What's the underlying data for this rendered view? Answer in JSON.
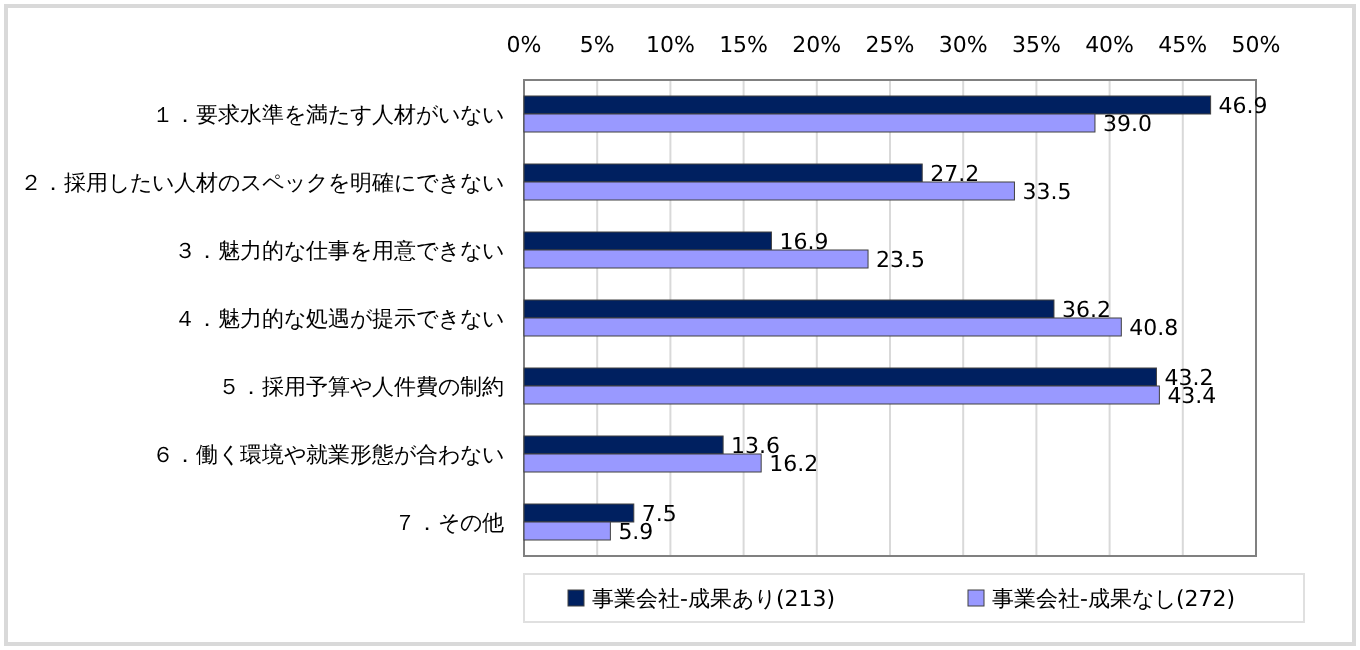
{
  "chart_data": {
    "type": "bar",
    "orientation": "horizontal",
    "categories": [
      "１．要求水準を満たす人材がいない",
      "２．採用したい人材のスペックを明確にできない",
      "３．魅力的な仕事を用意できない",
      "４．魅力的な処遇が提示できない",
      "５．採用予算や人件費の制約",
      "６．働く環境や就業形態が合わない",
      "７．その他"
    ],
    "series": [
      {
        "name": "事業会社-成果あり(213)",
        "color": "#002060",
        "values": [
          46.9,
          27.2,
          16.9,
          36.2,
          43.2,
          13.6,
          7.5
        ],
        "value_labels": [
          "46.9",
          "27.2",
          "16.9",
          "36.2",
          "43.2",
          "13.6",
          "7.5"
        ]
      },
      {
        "name": "事業会社-成果なし(272)",
        "color": "#9999ff",
        "values": [
          39.0,
          33.5,
          23.5,
          40.8,
          43.4,
          16.2,
          5.9
        ],
        "value_labels": [
          "39.0",
          "33.5",
          "23.5",
          "40.8",
          "43.4",
          "16.2",
          "5.9"
        ]
      }
    ],
    "xlim": [
      0,
      50
    ],
    "xticks": [
      {
        "value": 0,
        "label": "0%"
      },
      {
        "value": 5,
        "label": "5%"
      },
      {
        "value": 10,
        "label": "10%"
      },
      {
        "value": 15,
        "label": "15%"
      },
      {
        "value": 20,
        "label": "20%"
      },
      {
        "value": 25,
        "label": "25%"
      },
      {
        "value": 30,
        "label": "30%"
      },
      {
        "value": 35,
        "label": "35%"
      },
      {
        "value": 40,
        "label": "40%"
      },
      {
        "value": 45,
        "label": "45%"
      },
      {
        "value": 50,
        "label": "50%"
      }
    ],
    "grid": "x",
    "legend": "bottom"
  }
}
